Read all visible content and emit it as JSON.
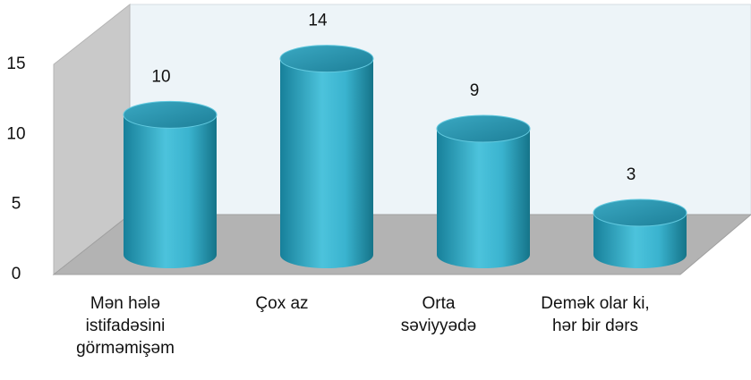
{
  "chart_data": {
    "type": "bar3d",
    "categories": [
      "Mən hələ\nistifadəsini\ngörməmişəm",
      "Çox az",
      "Orta\nsəviyyədə",
      "Demək olar ki,\nhər bir dərs"
    ],
    "values": [
      10,
      14,
      9,
      3
    ],
    "color": "#2ea6c4",
    "ylim": [
      0,
      15
    ],
    "yticks": [
      0,
      5,
      10,
      15
    ]
  }
}
